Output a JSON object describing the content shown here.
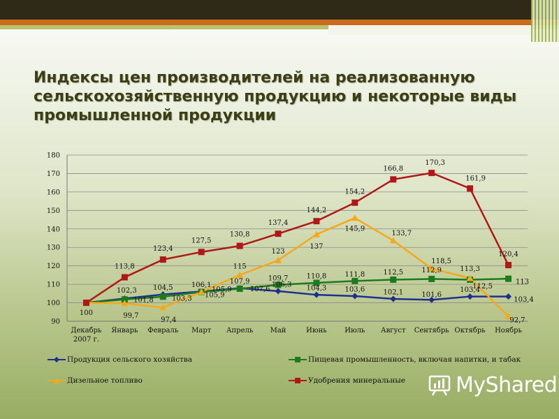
{
  "slide": {
    "title": "Индексы цен производителей на реализованную сельскохозяйственную продукцию и некоторые виды промышленной продукции",
    "brand": "MyShared",
    "brand_icon": "presentation-board-icon"
  },
  "colors": {
    "agri": "#1f2f8f",
    "food": "#1e7a1e",
    "diesel": "#f5a81c",
    "fert": "#b01818"
  },
  "chart_data": {
    "type": "line",
    "title": "",
    "xlabel": "",
    "ylabel": "",
    "ylim": [
      90,
      180
    ],
    "yticks": [
      "90",
      "100",
      "110",
      "120",
      "130",
      "140",
      "150",
      "160",
      "170",
      "180"
    ],
    "grid": true,
    "legend_position": "bottom",
    "categories": [
      "Декабрь 2007 г.",
      "Январь",
      "Февраль",
      "Март",
      "Апрель",
      "Май",
      "Июнь",
      "Июль",
      "Август",
      "Сентябрь",
      "Октябрь",
      "Ноябрь"
    ],
    "series": [
      {
        "name": "Продукция сельского хозяйства",
        "values": [
          100,
          102.3,
          104.5,
          106.1,
          107.9,
          106.3,
          104.3,
          103.6,
          102.1,
          101.6,
          103.4,
          103.4
        ],
        "labels": [
          "100",
          "102,3",
          "104,5",
          "106,1",
          "107,9",
          "106,3",
          "104,3",
          "103,6",
          "102,1",
          "101,6",
          "103,4",
          "103,4"
        ]
      },
      {
        "name": "Пищевая промышленность, включая напитки, и табак",
        "values": [
          100,
          101.8,
          103.3,
          105.9,
          107.6,
          109.7,
          110.8,
          111.8,
          112.5,
          112.9,
          112.5,
          113
        ],
        "labels": [
          "",
          "101,8",
          "103,3",
          "105,9",
          "107,6",
          "109,7",
          "110,8",
          "111,8",
          "112,5",
          "112,9",
          "112,5",
          "113"
        ]
      },
      {
        "name": "Дизельное топливо",
        "values": [
          100,
          99.7,
          97.4,
          105.9,
          115,
          123,
          137,
          145.9,
          133.7,
          118.5,
          113.3,
          92.7
        ],
        "labels": [
          "",
          "99,7",
          "97,4",
          "105,9",
          "115",
          "123",
          "137",
          "145,9",
          "133,7",
          "118,5",
          "113,3",
          "92,7"
        ]
      },
      {
        "name": "Удобрения минеральные",
        "values": [
          100,
          113.8,
          123.4,
          127.5,
          130.8,
          137.4,
          144.2,
          154.2,
          166.8,
          170.3,
          161.9,
          120.4
        ],
        "labels": [
          "",
          "113,8",
          "123,4",
          "127,5",
          "130,8",
          "137,4",
          "144,2",
          "154,2",
          "166,8",
          "170,3",
          "161,9",
          "120,4"
        ]
      }
    ]
  }
}
